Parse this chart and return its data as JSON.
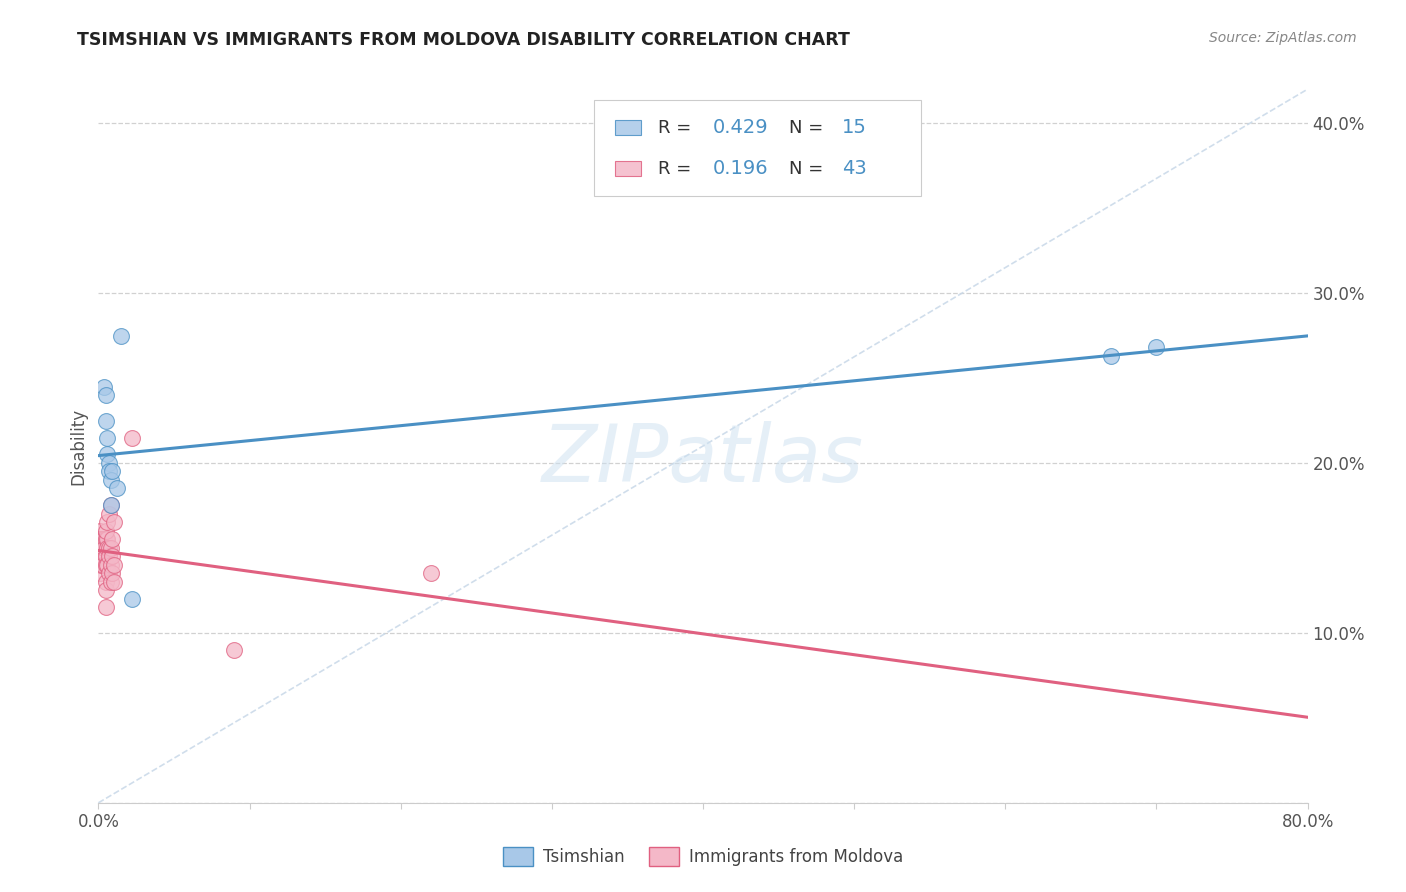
{
  "title": "TSIMSHIAN VS IMMIGRANTS FROM MOLDOVA DISABILITY CORRELATION CHART",
  "source": "Source: ZipAtlas.com",
  "ylabel": "Disability",
  "watermark": "ZIPatlas",
  "xmin": 0.0,
  "xmax": 0.8,
  "ymin": 0.0,
  "ymax": 0.42,
  "yticks": [
    0.0,
    0.1,
    0.2,
    0.3,
    0.4
  ],
  "ytick_labels": [
    "",
    "10.0%",
    "20.0%",
    "30.0%",
    "40.0%"
  ],
  "xtick_labels": [
    "0.0%",
    "",
    "",
    "",
    "",
    "",
    "",
    "",
    "80.0%"
  ],
  "color_blue": "#a8c8e8",
  "color_pink": "#f4b8c8",
  "color_blue_line": "#4a90c4",
  "color_pink_line": "#e06080",
  "color_diag": "#c8d8e8",
  "tsimshian_x": [
    0.004,
    0.005,
    0.005,
    0.006,
    0.006,
    0.007,
    0.007,
    0.008,
    0.008,
    0.009,
    0.012,
    0.015,
    0.67,
    0.7,
    0.022
  ],
  "tsimshian_y": [
    0.245,
    0.24,
    0.225,
    0.215,
    0.205,
    0.2,
    0.195,
    0.19,
    0.175,
    0.195,
    0.185,
    0.275,
    0.263,
    0.268,
    0.12
  ],
  "moldova_x": [
    0.001,
    0.001,
    0.001,
    0.001,
    0.001,
    0.002,
    0.002,
    0.002,
    0.002,
    0.003,
    0.003,
    0.003,
    0.003,
    0.004,
    0.004,
    0.005,
    0.005,
    0.005,
    0.005,
    0.005,
    0.005,
    0.006,
    0.006,
    0.006,
    0.007,
    0.007,
    0.007,
    0.008,
    0.008,
    0.008,
    0.009,
    0.009,
    0.01,
    0.01,
    0.005,
    0.006,
    0.007,
    0.008,
    0.009,
    0.01,
    0.022,
    0.09,
    0.22
  ],
  "moldova_y": [
    0.155,
    0.16,
    0.155,
    0.145,
    0.135,
    0.155,
    0.15,
    0.145,
    0.14,
    0.155,
    0.15,
    0.145,
    0.14,
    0.155,
    0.15,
    0.155,
    0.145,
    0.14,
    0.13,
    0.125,
    0.115,
    0.155,
    0.15,
    0.14,
    0.15,
    0.145,
    0.135,
    0.15,
    0.14,
    0.13,
    0.145,
    0.135,
    0.14,
    0.13,
    0.16,
    0.165,
    0.17,
    0.175,
    0.155,
    0.165,
    0.215,
    0.09,
    0.135
  ],
  "legend_r1_val": "0.429",
  "legend_n1_val": "15",
  "legend_r2_val": "0.196",
  "legend_n2_val": "43",
  "label_color_blue": "#4a90c4",
  "label_color_pink": "#e06080",
  "label_color_rn": "#333333"
}
